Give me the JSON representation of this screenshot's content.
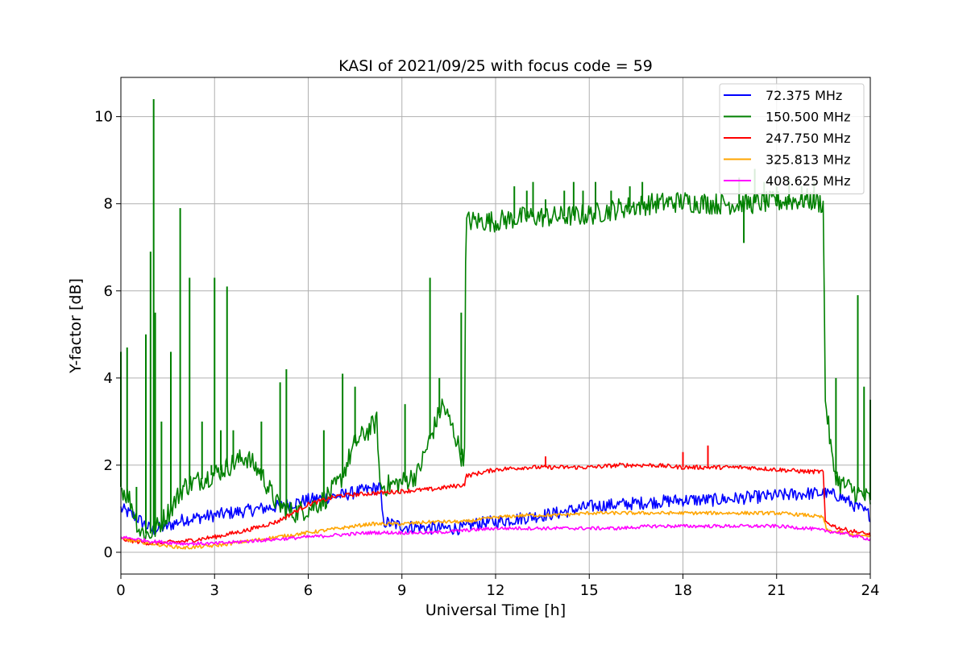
{
  "chart_data": {
    "type": "line",
    "title": "KASI of 2021/09/25 with focus code = 59",
    "xlabel": "Universal Time [h]",
    "ylabel": "Y-factor [dB]",
    "xlim": [
      0,
      24
    ],
    "ylim": [
      -0.5,
      10.9
    ],
    "xticks": [
      0,
      3,
      6,
      9,
      12,
      15,
      18,
      21,
      24
    ],
    "xtick_labels": [
      "0",
      "3",
      "6",
      "9",
      "12",
      "15",
      "18",
      "21",
      "24"
    ],
    "yticks": [
      0,
      2,
      4,
      6,
      8,
      10
    ],
    "ytick_labels": [
      "0",
      "2",
      "4",
      "6",
      "8",
      "10"
    ],
    "grid": true,
    "legend_position": "top-right",
    "series": [
      {
        "name": " 72.375 MHz",
        "color": "#0000ff",
        "noise": 0.15,
        "points": [
          [
            0,
            1.0
          ],
          [
            0.5,
            0.8
          ],
          [
            1.0,
            0.5
          ],
          [
            1.5,
            0.6
          ],
          [
            2,
            0.75
          ],
          [
            3,
            0.85
          ],
          [
            4,
            0.95
          ],
          [
            5,
            1.05
          ],
          [
            6,
            1.2
          ],
          [
            7,
            1.3
          ],
          [
            8,
            1.45
          ],
          [
            8.3,
            1.5
          ],
          [
            8.4,
            0.7
          ],
          [
            9,
            0.6
          ],
          [
            10,
            0.55
          ],
          [
            11,
            0.55
          ],
          [
            11.3,
            0.65
          ],
          [
            12,
            0.7
          ],
          [
            13,
            0.8
          ],
          [
            14,
            0.9
          ],
          [
            15,
            1.05
          ],
          [
            16,
            1.1
          ],
          [
            17,
            1.15
          ],
          [
            18,
            1.2
          ],
          [
            19,
            1.2
          ],
          [
            20,
            1.25
          ],
          [
            21,
            1.3
          ],
          [
            22,
            1.35
          ],
          [
            22.5,
            1.35
          ],
          [
            23,
            1.3
          ],
          [
            24,
            0.85
          ]
        ],
        "spikes": []
      },
      {
        "name": "150.500 MHz",
        "color": "#008000",
        "noise": 0.25,
        "points": [
          [
            0,
            1.5
          ],
          [
            0.3,
            1.2
          ],
          [
            0.6,
            0.5
          ],
          [
            0.9,
            0.4
          ],
          [
            1.2,
            0.6
          ],
          [
            1.6,
            1.0
          ],
          [
            2,
            1.5
          ],
          [
            3,
            1.8
          ],
          [
            4,
            2.2
          ],
          [
            4.5,
            1.8
          ],
          [
            5,
            1.1
          ],
          [
            5.5,
            0.9
          ],
          [
            6,
            1.0
          ],
          [
            6.5,
            1.2
          ],
          [
            7,
            1.6
          ],
          [
            7.5,
            2.5
          ],
          [
            8.2,
            3.0
          ],
          [
            8.3,
            1.5
          ],
          [
            9,
            1.6
          ],
          [
            9.5,
            1.8
          ],
          [
            10,
            2.8
          ],
          [
            10.3,
            3.4
          ],
          [
            10.7,
            2.7
          ],
          [
            11,
            2.0
          ],
          [
            11.05,
            7.6
          ],
          [
            12,
            7.6
          ],
          [
            13,
            7.7
          ],
          [
            14,
            7.7
          ],
          [
            15,
            7.75
          ],
          [
            16,
            7.9
          ],
          [
            17,
            8.0
          ],
          [
            18,
            8.05
          ],
          [
            19,
            8.0
          ],
          [
            20,
            8.0
          ],
          [
            21,
            8.05
          ],
          [
            22,
            8.1
          ],
          [
            22.5,
            8.0
          ],
          [
            22.55,
            3.6
          ],
          [
            22.8,
            2.0
          ],
          [
            23,
            1.6
          ],
          [
            23.5,
            1.4
          ],
          [
            24,
            1.2
          ]
        ],
        "spikes": [
          [
            0,
            4.6
          ],
          [
            0.2,
            4.7
          ],
          [
            0.5,
            1.5
          ],
          [
            0.8,
            5.0
          ],
          [
            0.95,
            6.9
          ],
          [
            1.05,
            10.4
          ],
          [
            1.1,
            5.5
          ],
          [
            1.3,
            3.0
          ],
          [
            1.6,
            4.6
          ],
          [
            1.9,
            7.9
          ],
          [
            2.2,
            6.3
          ],
          [
            2.6,
            3.0
          ],
          [
            2.9,
            2.0
          ],
          [
            3.0,
            6.3
          ],
          [
            3.2,
            2.8
          ],
          [
            3.4,
            6.1
          ],
          [
            3.6,
            2.8
          ],
          [
            4.5,
            3.0
          ],
          [
            5.1,
            3.9
          ],
          [
            5.3,
            4.2
          ],
          [
            6.5,
            2.8
          ],
          [
            7.1,
            4.1
          ],
          [
            7.5,
            3.8
          ],
          [
            9.1,
            3.4
          ],
          [
            9.9,
            6.3
          ],
          [
            10.2,
            4.0
          ],
          [
            10.9,
            5.5
          ],
          [
            12.6,
            8.4
          ],
          [
            13,
            8.3
          ],
          [
            13.2,
            8.5
          ],
          [
            13.6,
            8.1
          ],
          [
            14.2,
            8.3
          ],
          [
            14.5,
            8.5
          ],
          [
            14.8,
            8.3
          ],
          [
            15.2,
            8.5
          ],
          [
            15.7,
            8.3
          ],
          [
            16.3,
            8.4
          ],
          [
            16.7,
            8.5
          ],
          [
            19.8,
            8.6
          ],
          [
            20.3,
            8.8
          ],
          [
            20.6,
            8.5
          ],
          [
            21.0,
            8.4
          ],
          [
            21.4,
            8.6
          ],
          [
            21.8,
            8.4
          ],
          [
            22.2,
            8.5
          ],
          [
            19.95,
            7.1
          ],
          [
            22.9,
            4.0
          ],
          [
            23.6,
            5.9
          ],
          [
            23.8,
            3.8
          ],
          [
            24,
            3.5
          ]
        ]
      },
      {
        "name": "247.750 MHz",
        "color": "#ff0000",
        "noise": 0.05,
        "points": [
          [
            0,
            0.3
          ],
          [
            1,
            0.2
          ],
          [
            2,
            0.25
          ],
          [
            3,
            0.35
          ],
          [
            4,
            0.5
          ],
          [
            5,
            0.7
          ],
          [
            5.5,
            0.9
          ],
          [
            6,
            1.1
          ],
          [
            7,
            1.3
          ],
          [
            8,
            1.35
          ],
          [
            9,
            1.4
          ],
          [
            10,
            1.45
          ],
          [
            11,
            1.55
          ],
          [
            11.05,
            1.75
          ],
          [
            12,
            1.9
          ],
          [
            13,
            1.95
          ],
          [
            14,
            1.95
          ],
          [
            15,
            1.95
          ],
          [
            16,
            2.0
          ],
          [
            17,
            2.0
          ],
          [
            18,
            1.95
          ],
          [
            19,
            1.95
          ],
          [
            20,
            1.95
          ],
          [
            21,
            1.9
          ],
          [
            22,
            1.85
          ],
          [
            22.5,
            1.85
          ],
          [
            22.55,
            0.7
          ],
          [
            23,
            0.55
          ],
          [
            24,
            0.4
          ]
        ],
        "spikes": [
          [
            13.6,
            2.2
          ],
          [
            18.0,
            2.3
          ],
          [
            18.8,
            2.45
          ]
        ]
      },
      {
        "name": "325.813 MHz",
        "color": "#ffa500",
        "noise": 0.04,
        "points": [
          [
            0,
            0.3
          ],
          [
            1,
            0.2
          ],
          [
            2,
            0.1
          ],
          [
            3,
            0.15
          ],
          [
            4,
            0.25
          ],
          [
            5,
            0.35
          ],
          [
            6,
            0.45
          ],
          [
            7,
            0.55
          ],
          [
            8,
            0.65
          ],
          [
            9,
            0.65
          ],
          [
            10,
            0.7
          ],
          [
            11,
            0.7
          ],
          [
            12,
            0.8
          ],
          [
            13,
            0.85
          ],
          [
            14,
            0.85
          ],
          [
            15,
            0.9
          ],
          [
            16,
            0.9
          ],
          [
            17,
            0.9
          ],
          [
            18,
            0.9
          ],
          [
            19,
            0.9
          ],
          [
            20,
            0.9
          ],
          [
            21,
            0.9
          ],
          [
            22,
            0.85
          ],
          [
            22.5,
            0.8
          ],
          [
            22.6,
            0.5
          ],
          [
            23,
            0.45
          ],
          [
            24,
            0.35
          ]
        ],
        "spikes": []
      },
      {
        "name": "408.625 MHz",
        "color": "#ff00ff",
        "noise": 0.04,
        "points": [
          [
            0,
            0.35
          ],
          [
            1,
            0.25
          ],
          [
            2,
            0.2
          ],
          [
            3,
            0.2
          ],
          [
            4,
            0.25
          ],
          [
            5,
            0.3
          ],
          [
            6,
            0.35
          ],
          [
            7,
            0.4
          ],
          [
            8,
            0.45
          ],
          [
            9,
            0.45
          ],
          [
            10,
            0.45
          ],
          [
            11,
            0.5
          ],
          [
            12,
            0.55
          ],
          [
            13,
            0.55
          ],
          [
            14,
            0.55
          ],
          [
            15,
            0.55
          ],
          [
            16,
            0.55
          ],
          [
            17,
            0.6
          ],
          [
            18,
            0.6
          ],
          [
            19,
            0.6
          ],
          [
            20,
            0.6
          ],
          [
            21,
            0.6
          ],
          [
            22,
            0.55
          ],
          [
            23,
            0.45
          ],
          [
            24,
            0.3
          ]
        ],
        "spikes": []
      }
    ]
  }
}
